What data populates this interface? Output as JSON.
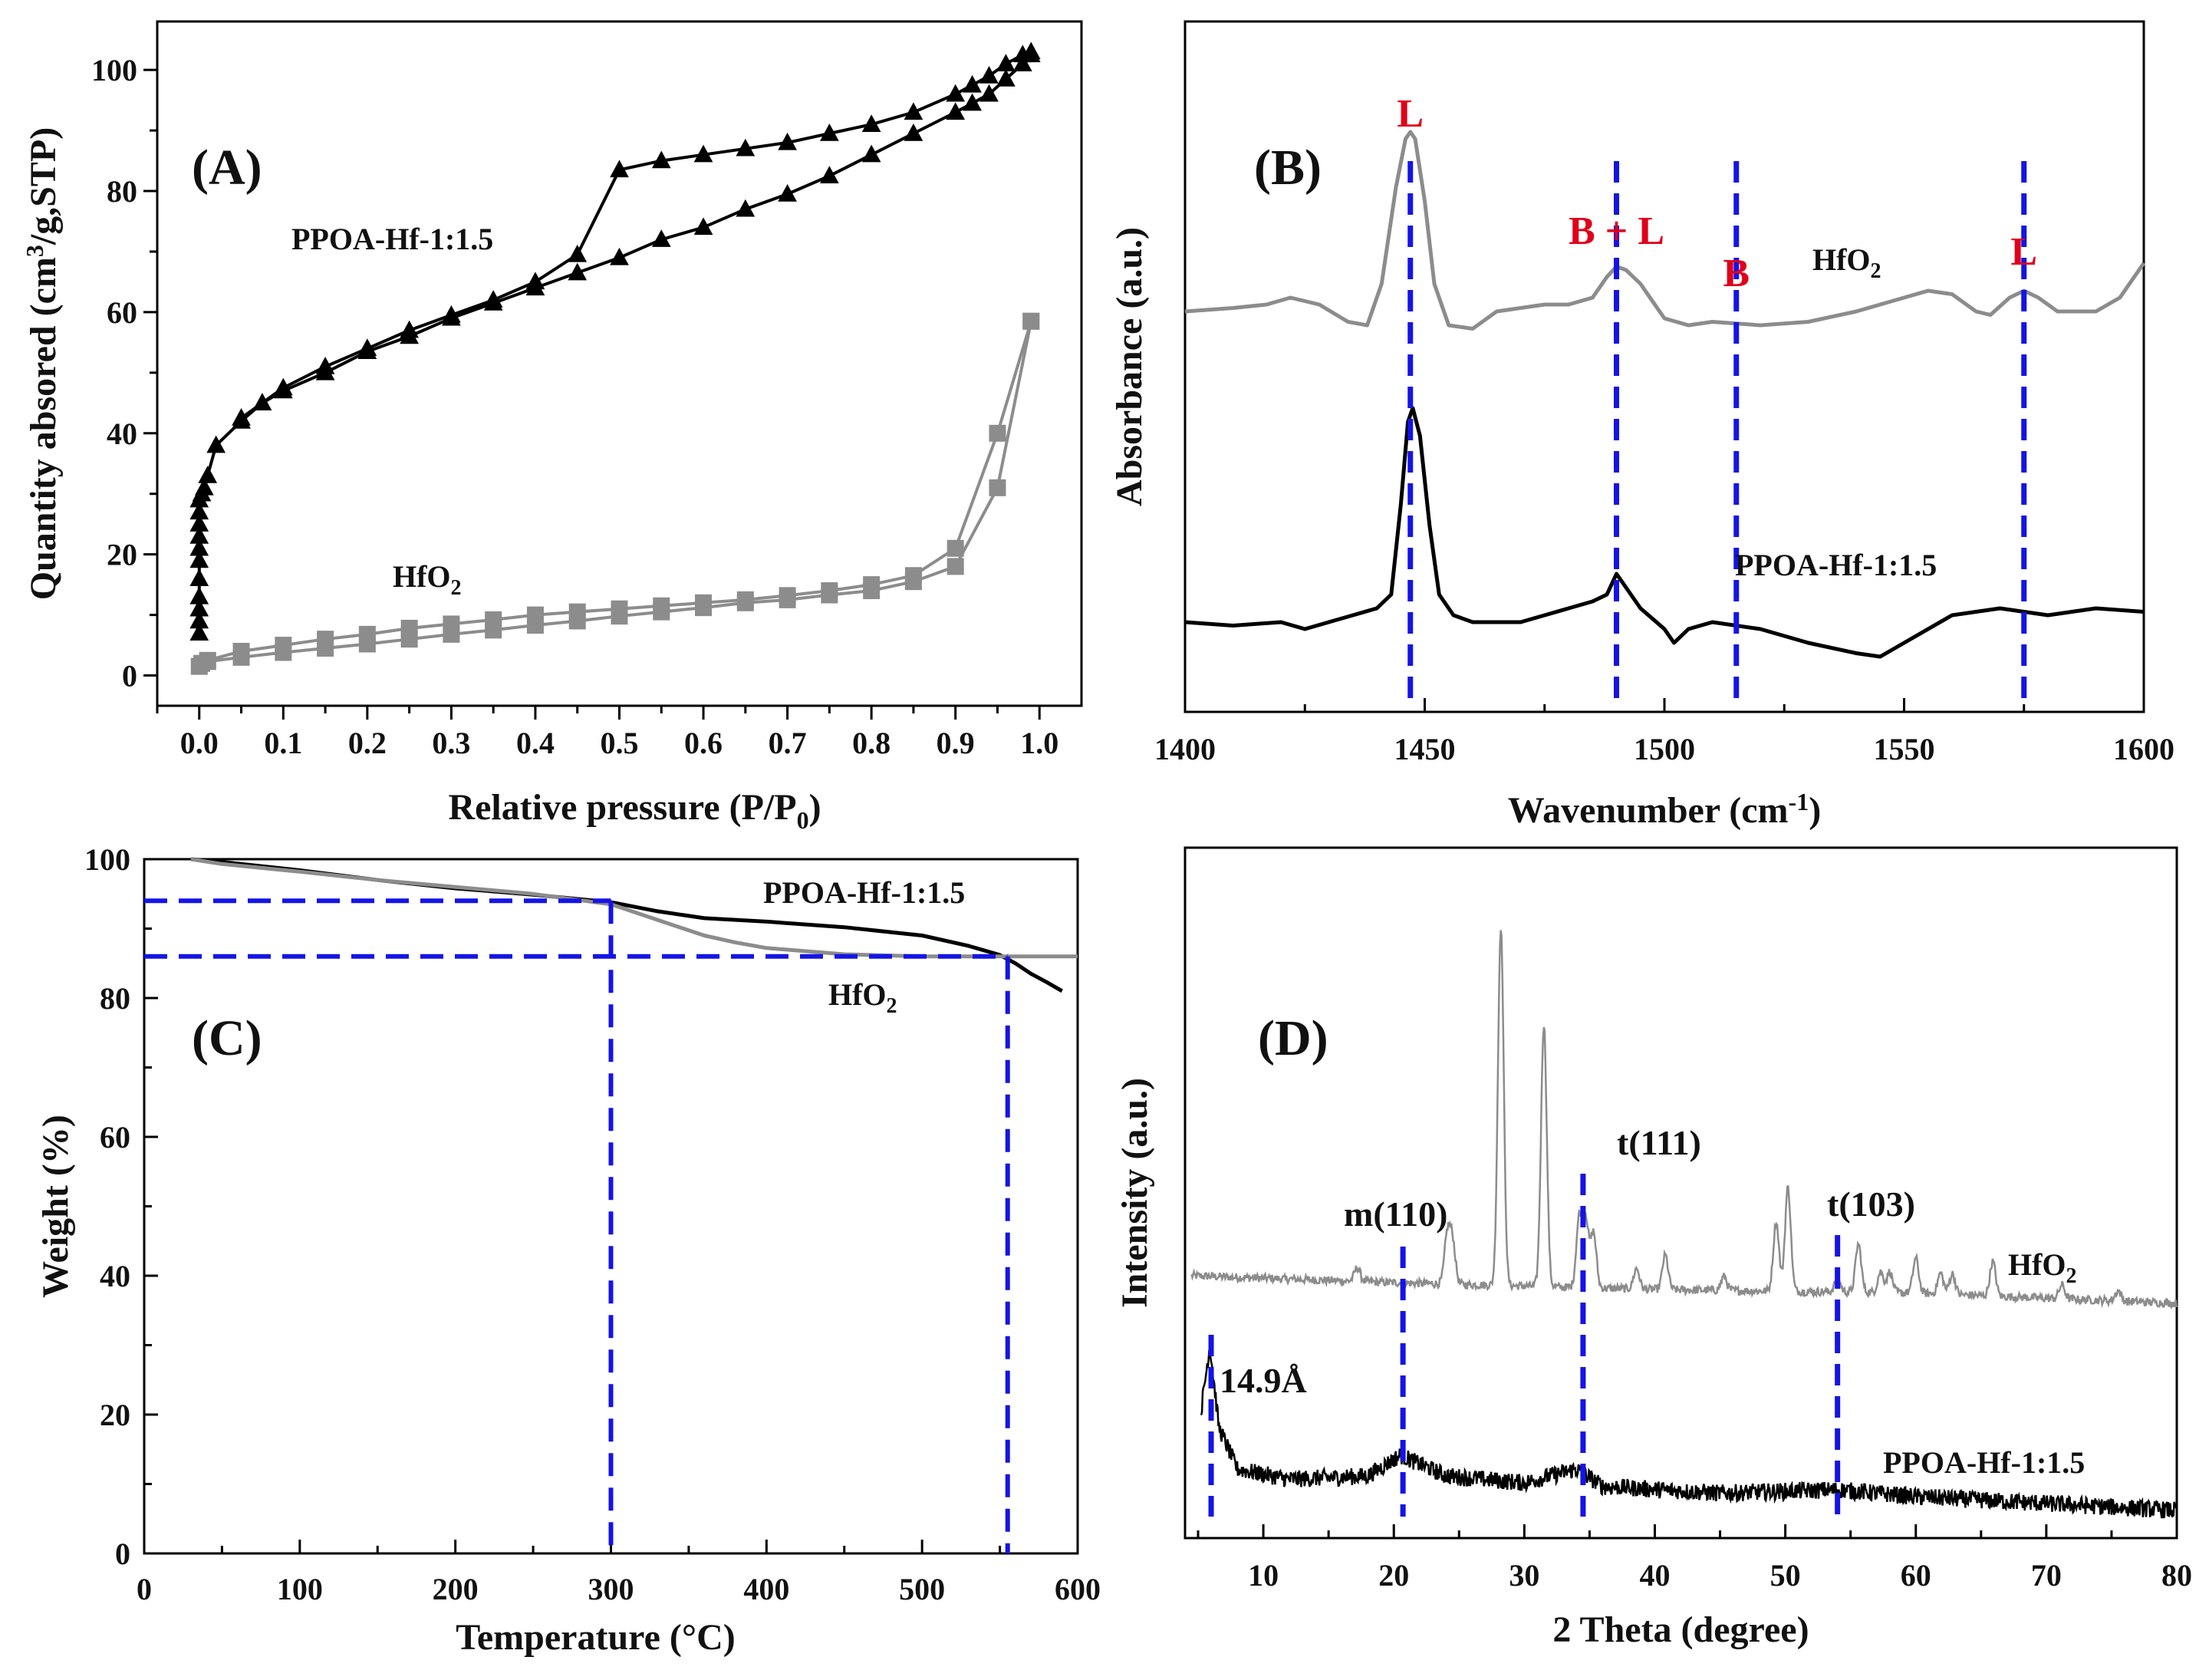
{
  "colors": {
    "black": "#000000",
    "gray": "#8c8c8c",
    "blue": "#1414e6",
    "red": "#e0001a"
  },
  "chart_data": [
    {
      "panel": "(A)",
      "type": "line",
      "xlabel": "Relative pressure (P/P",
      "xlabel_sub": "0",
      "xlabel_end": ")",
      "ylabel": "Quantity absored (cm",
      "ylabel_sup": "3",
      "ylabel_end": "/g,STP)",
      "xlim": [
        -0.05,
        1.05
      ],
      "ylim": [
        -5,
        108
      ],
      "xticks": [
        0.0,
        0.1,
        0.2,
        0.3,
        0.4,
        0.5,
        0.6,
        0.7,
        0.8,
        0.9,
        1.0
      ],
      "xtick_labels": [
        "0.0",
        "0.1",
        "0.2",
        "0.3",
        "0.4",
        "0.5",
        "0.6",
        "0.7",
        "0.8",
        "0.9",
        "1.0"
      ],
      "yticks": [
        0,
        20,
        40,
        60,
        80,
        100
      ],
      "ytick_labels": [
        "0",
        "20",
        "40",
        "60",
        "80",
        "100"
      ],
      "series": [
        {
          "name": "PPOA-Hf-1:1.5",
          "marker": "triangle",
          "color": "#000000",
          "label_main": "PPOA-Hf-1:1.5",
          "label_sub": "",
          "adsorption": {
            "x": [
              0.0,
              0.0,
              0.0,
              0.0,
              0.0,
              0.0,
              0.0,
              0.0,
              0.0,
              0.0,
              0.0,
              0.003,
              0.006,
              0.01,
              0.02,
              0.05,
              0.075,
              0.1,
              0.15,
              0.2,
              0.25,
              0.3,
              0.35,
              0.4,
              0.45,
              0.5,
              0.55,
              0.6,
              0.65,
              0.7,
              0.75,
              0.8,
              0.85,
              0.9,
              0.92,
              0.94,
              0.96,
              0.98,
              0.99
            ],
            "y": [
              7,
              9,
              11,
              13,
              16,
              19,
              21,
              23,
              25,
              27,
              29,
              30,
              31,
              33,
              38,
              42,
              45,
              47,
              50,
              53.5,
              56,
              59,
              61.5,
              64,
              66.5,
              69,
              72,
              74,
              77,
              79.5,
              82.5,
              86,
              89.5,
              93,
              94.5,
              96,
              98.5,
              101,
              102.5
            ]
          },
          "desorption": {
            "x": [
              0.99,
              0.98,
              0.96,
              0.94,
              0.92,
              0.9,
              0.85,
              0.8,
              0.75,
              0.7,
              0.65,
              0.6,
              0.55,
              0.5,
              0.45,
              0.4,
              0.35,
              0.3,
              0.25,
              0.2,
              0.15,
              0.1,
              0.075,
              0.05
            ],
            "y": [
              103,
              102.5,
              101,
              99,
              97.5,
              96,
              93,
              91,
              89.5,
              88,
              87,
              86,
              85,
              83.5,
              69.5,
              65,
              62,
              59.5,
              57,
              54,
              51,
              47.5,
              45,
              42.5
            ]
          }
        },
        {
          "name": "HfO2",
          "marker": "square",
          "color": "#8c8c8c",
          "label_main": "HfO",
          "label_sub": "2",
          "adsorption": {
            "x": [
              0.0,
              0.003,
              0.01,
              0.05,
              0.1,
              0.15,
              0.2,
              0.25,
              0.3,
              0.35,
              0.4,
              0.45,
              0.5,
              0.55,
              0.6,
              0.65,
              0.7,
              0.75,
              0.8,
              0.85,
              0.9,
              0.95,
              0.99
            ],
            "y": [
              1.5,
              2,
              2.3,
              3,
              3.8,
              4.5,
              5.2,
              6,
              6.8,
              7.5,
              8.3,
              9,
              9.8,
              10.5,
              11.2,
              12,
              12.5,
              13.3,
              14,
              15.5,
              18,
              31,
              58.5
            ]
          },
          "desorption": {
            "x": [
              0.99,
              0.95,
              0.9,
              0.85,
              0.8,
              0.75,
              0.7,
              0.65,
              0.6,
              0.55,
              0.5,
              0.45,
              0.4,
              0.35,
              0.3,
              0.25,
              0.2,
              0.15,
              0.1,
              0.05,
              0.01
            ],
            "y": [
              58.5,
              40,
              21,
              16.5,
              15,
              14,
              13.2,
              12.5,
              12,
              11.5,
              11,
              10.5,
              10,
              9.2,
              8.5,
              7.8,
              6.8,
              6,
              5,
              4,
              2.5
            ]
          }
        }
      ]
    },
    {
      "panel": "(B)",
      "type": "line",
      "xlabel": "Wavenumber (cm",
      "xlabel_sup": "-1",
      "xlabel_end": ")",
      "ylabel": "Absorbance (a.u.)",
      "xlim": [
        1400,
        1600
      ],
      "ylim": [
        0,
        1
      ],
      "xticks": [
        1400,
        1450,
        1500,
        1550,
        1600
      ],
      "xtick_labels": [
        "1400",
        "1450",
        "1500",
        "1550",
        "1600"
      ],
      "series": [
        {
          "name": "HfO2",
          "color": "#8c8c8c",
          "label_main": "HfO",
          "label_sub": "2",
          "x": [
            1400,
            1410,
            1417,
            1422,
            1428,
            1434,
            1438,
            1441,
            1444,
            1446,
            1447,
            1448,
            1450,
            1452,
            1455,
            1460,
            1465,
            1470,
            1475,
            1480,
            1485,
            1488,
            1490,
            1492,
            1495,
            1500,
            1505,
            1510,
            1520,
            1530,
            1540,
            1550,
            1555,
            1560,
            1565,
            1568,
            1572,
            1575,
            1578,
            1582,
            1590,
            1595,
            1600
          ],
          "y": [
            0.58,
            0.585,
            0.59,
            0.6,
            0.59,
            0.565,
            0.56,
            0.62,
            0.76,
            0.83,
            0.84,
            0.83,
            0.74,
            0.62,
            0.56,
            0.555,
            0.58,
            0.585,
            0.59,
            0.59,
            0.6,
            0.63,
            0.645,
            0.64,
            0.62,
            0.57,
            0.56,
            0.565,
            0.56,
            0.565,
            0.58,
            0.6,
            0.61,
            0.605,
            0.58,
            0.575,
            0.6,
            0.61,
            0.6,
            0.58,
            0.58,
            0.6,
            0.65
          ]
        },
        {
          "name": "PPOA-Hf-1:1.5",
          "color": "#000000",
          "label_main": "PPOA-Hf-1:1.5",
          "label_sub": "",
          "x": [
            1400,
            1410,
            1420,
            1425,
            1430,
            1435,
            1440,
            1443,
            1445,
            1446.5,
            1447.5,
            1449,
            1451,
            1453,
            1456,
            1460,
            1470,
            1475,
            1480,
            1485,
            1488,
            1490,
            1492,
            1495,
            1500,
            1502,
            1505,
            1510,
            1520,
            1530,
            1540,
            1545,
            1550,
            1560,
            1565,
            1570,
            1580,
            1590,
            1600
          ],
          "y": [
            0.13,
            0.125,
            0.13,
            0.12,
            0.13,
            0.14,
            0.15,
            0.17,
            0.3,
            0.42,
            0.44,
            0.4,
            0.27,
            0.17,
            0.14,
            0.13,
            0.13,
            0.14,
            0.15,
            0.16,
            0.17,
            0.2,
            0.18,
            0.15,
            0.12,
            0.1,
            0.12,
            0.13,
            0.12,
            0.1,
            0.085,
            0.08,
            0.1,
            0.14,
            0.145,
            0.15,
            0.14,
            0.15,
            0.145
          ]
        }
      ],
      "reference_lines": [
        {
          "x": 1447,
          "label": "L"
        },
        {
          "x": 1490,
          "label": "B + L"
        },
        {
          "x": 1515,
          "label": "B"
        },
        {
          "x": 1575,
          "label": "L"
        }
      ]
    },
    {
      "panel": "(C)",
      "type": "line",
      "xlabel": "Temperature (°C)",
      "ylabel": "Weight (%)",
      "xlim": [
        0,
        600
      ],
      "ylim": [
        0,
        100
      ],
      "xticks": [
        0,
        100,
        200,
        300,
        400,
        500,
        600
      ],
      "xtick_labels": [
        "0",
        "100",
        "200",
        "300",
        "400",
        "500",
        "600"
      ],
      "yticks": [
        0,
        20,
        40,
        60,
        80,
        100
      ],
      "ytick_labels": [
        "0",
        "20",
        "40",
        "60",
        "80",
        "100"
      ],
      "series": [
        {
          "name": "PPOA-Hf-1:1.5",
          "color": "#000000",
          "label_main": "PPOA-Hf-1:1.5",
          "label_sub": "",
          "x": [
            30,
            50,
            100,
            150,
            200,
            250,
            300,
            330,
            360,
            400,
            450,
            500,
            530,
            550,
            560,
            570,
            580,
            590
          ],
          "y": [
            100,
            99.6,
            98.4,
            97,
            95.8,
            94.9,
            93.8,
            92.5,
            91.5,
            91,
            90.2,
            89,
            87.5,
            86.2,
            85,
            83.5,
            82.3,
            81
          ]
        },
        {
          "name": "HfO2",
          "color": "#8c8c8c",
          "label_main": "HfO",
          "label_sub": "2",
          "x": [
            30,
            50,
            100,
            150,
            200,
            250,
            300,
            320,
            340,
            360,
            380,
            400,
            450,
            500,
            550,
            600
          ],
          "y": [
            100,
            99.3,
            98.2,
            97,
            96,
            95,
            93.5,
            92,
            90.5,
            89,
            88,
            87.2,
            86.3,
            86,
            86,
            86
          ]
        }
      ],
      "reference_points": [
        {
          "x": 300,
          "y": 94
        },
        {
          "x": 555,
          "y": 86
        }
      ]
    },
    {
      "panel": "(D)",
      "type": "line",
      "xlabel": "2 Theta (degree)",
      "ylabel": "Intensity (a.u.)",
      "xlim": [
        4,
        80
      ],
      "ylim": [
        0,
        1
      ],
      "xticks": [
        10,
        20,
        30,
        40,
        50,
        60,
        70,
        80
      ],
      "xtick_labels": [
        "10",
        "20",
        "30",
        "40",
        "50",
        "60",
        "70",
        "80"
      ],
      "series": [
        {
          "name": "HfO2",
          "color": "#8c8c8c",
          "label_main": "HfO",
          "label_sub": "2",
          "baseline": [
            [
              4.5,
              0.38
            ],
            [
              20,
              0.37
            ],
            [
              40,
              0.36
            ],
            [
              60,
              0.355
            ],
            [
              80,
              0.34
            ]
          ],
          "peaks": [
            [
              17.2,
              0.02
            ],
            [
              24.1,
              0.07
            ],
            [
              24.5,
              0.06
            ],
            [
              28.2,
              0.52
            ],
            [
              31.5,
              0.38
            ],
            [
              34.2,
              0.1
            ],
            [
              34.7,
              0.1
            ],
            [
              35.3,
              0.08
            ],
            [
              38.6,
              0.03
            ],
            [
              40.8,
              0.05
            ],
            [
              45.3,
              0.02
            ],
            [
              49.3,
              0.1
            ],
            [
              50.2,
              0.15
            ],
            [
              54.0,
              0.02
            ],
            [
              55.6,
              0.07
            ],
            [
              57.3,
              0.03
            ],
            [
              58.0,
              0.03
            ],
            [
              60.0,
              0.05
            ],
            [
              61.9,
              0.03
            ],
            [
              62.8,
              0.03
            ],
            [
              65.9,
              0.05
            ],
            [
              71.2,
              0.02
            ],
            [
              75.5,
              0.015
            ]
          ]
        },
        {
          "name": "PPOA-Hf-1:1.5",
          "color": "#000000",
          "label_main": "PPOA-Hf-1:1.5",
          "label_sub": "",
          "baseline": [
            [
              5.2,
              0.18
            ],
            [
              5.9,
              0.28
            ],
            [
              6.6,
              0.16
            ],
            [
              8,
              0.1
            ],
            [
              12,
              0.085
            ],
            [
              18,
              0.09
            ],
            [
              20.5,
              0.12
            ],
            [
              24,
              0.09
            ],
            [
              30,
              0.08
            ],
            [
              34,
              0.1
            ],
            [
              36,
              0.075
            ],
            [
              45,
              0.065
            ],
            [
              54,
              0.07
            ],
            [
              60,
              0.06
            ],
            [
              80,
              0.04
            ]
          ]
        }
      ],
      "reference_lines": [
        {
          "x": 6.0,
          "label": "14.9Å"
        },
        {
          "x": 20.7,
          "label": "m(110)"
        },
        {
          "x": 34.5,
          "label": "t(111)"
        },
        {
          "x": 54.0,
          "label": "t(103)"
        }
      ]
    }
  ]
}
